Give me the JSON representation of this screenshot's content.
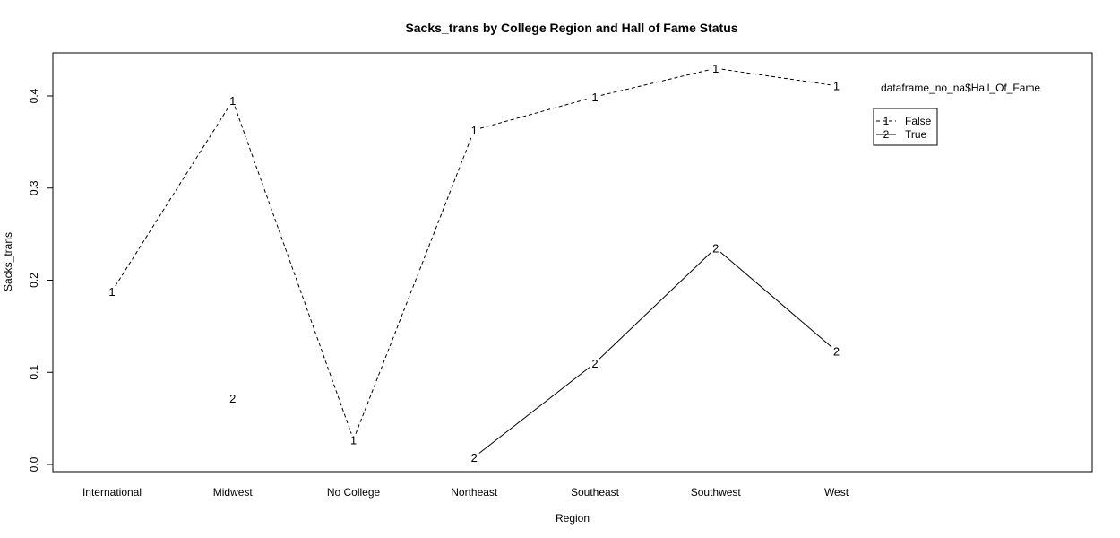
{
  "chart_data": {
    "type": "line",
    "title": "Sacks_trans by College Region and Hall of Fame Status",
    "xlabel": "Region",
    "ylabel": "Sacks_trans",
    "categories": [
      "International",
      "Midwest",
      "No College",
      "Northeast",
      "Southeast",
      "Southwest",
      "West"
    ],
    "ylim": [
      0,
      0.4
    ],
    "yticks": [
      0.0,
      0.1,
      0.2,
      0.3,
      0.4
    ],
    "ytick_labels": [
      "0.0",
      "0.1",
      "0.2",
      "0.3",
      "0.4"
    ],
    "series": [
      {
        "marker": "1",
        "line_style": "dashed",
        "values": [
          0.188,
          0.395,
          0.027,
          0.363,
          0.399,
          0.43,
          0.411
        ]
      },
      {
        "marker": "2",
        "line_style": "solid",
        "values": [
          null,
          0.072,
          null,
          0.008,
          0.11,
          0.235,
          0.123
        ]
      }
    ],
    "legend": {
      "title": "dataframe_no_na$Hall_Of_Fame",
      "position": "top-right",
      "entries": [
        {
          "marker": "1",
          "label": "False",
          "line_style": "dashed"
        },
        {
          "marker": "2",
          "label": "True",
          "line_style": "solid"
        }
      ]
    },
    "grid": false,
    "colors": {
      "line": "#000000",
      "background": "#ffffff"
    }
  }
}
